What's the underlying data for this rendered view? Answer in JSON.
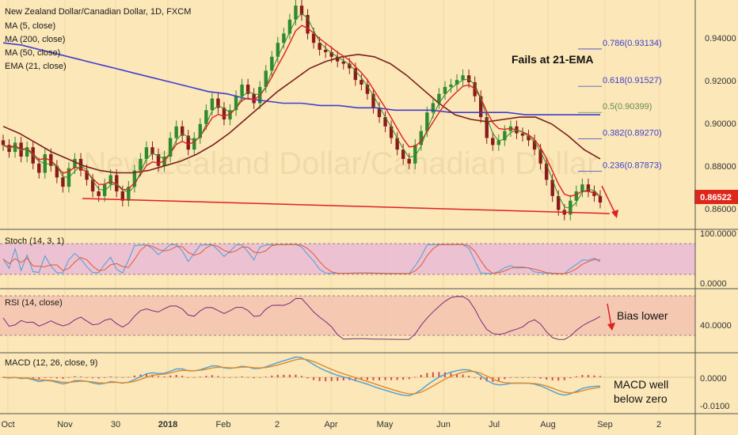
{
  "chart_data": {
    "type": "line",
    "title": "New Zealand Dollar/Canadian Dollar, 1D, FXCM",
    "watermark": "New Zealand Dollar/Canadian Dollar",
    "x_ticks": [
      "Oct",
      "Nov",
      "30",
      "2018",
      "Feb",
      "2",
      "Apr",
      "May",
      "Jun",
      "Jul",
      "Aug",
      "Sep",
      "2"
    ],
    "price_pane": {
      "legend": [
        "MA (5, close)",
        "MA (200, close)",
        "MA (50, close)",
        "EMA (21, close)"
      ],
      "y_ticks": [
        "0.94000",
        "0.92000",
        "0.90000",
        "0.88000",
        "0.86000"
      ],
      "ylim": [
        0.855,
        0.947
      ],
      "last_price": "0.86522",
      "close_series": [
        0.89,
        0.887,
        0.891,
        0.885,
        0.889,
        0.882,
        0.878,
        0.886,
        0.881,
        0.876,
        0.872,
        0.88,
        0.884,
        0.879,
        0.875,
        0.87,
        0.868,
        0.873,
        0.877,
        0.87,
        0.866,
        0.872,
        0.879,
        0.884,
        0.889,
        0.886,
        0.881,
        0.885,
        0.893,
        0.898,
        0.894,
        0.888,
        0.893,
        0.899,
        0.905,
        0.91,
        0.906,
        0.901,
        0.905,
        0.911,
        0.916,
        0.912,
        0.908,
        0.915,
        0.922,
        0.928,
        0.934,
        0.938,
        0.944,
        0.95,
        0.946,
        0.938,
        0.934,
        0.931,
        0.93,
        0.928,
        0.926,
        0.925,
        0.923,
        0.918,
        0.916,
        0.912,
        0.906,
        0.902,
        0.898,
        0.893,
        0.888,
        0.884,
        0.882,
        0.89,
        0.896,
        0.904,
        0.908,
        0.912,
        0.915,
        0.916,
        0.918,
        0.92,
        0.917,
        0.911,
        0.902,
        0.893,
        0.89,
        0.892,
        0.896,
        0.898,
        0.895,
        0.894,
        0.892,
        0.888,
        0.882,
        0.875,
        0.868,
        0.862,
        0.86,
        0.866,
        0.87,
        0.873,
        0.87,
        0.868,
        0.8652
      ],
      "sma200": [
        0.934,
        0.933,
        0.931,
        0.929,
        0.927,
        0.925,
        0.923,
        0.921,
        0.919,
        0.917,
        0.915,
        0.913,
        0.912,
        0.91,
        0.909,
        0.908,
        0.908,
        0.907,
        0.907,
        0.906,
        0.906,
        0.905,
        0.905,
        0.905,
        0.904,
        0.904,
        0.904,
        0.904,
        0.903,
        0.903,
        0.903,
        0.903,
        0.903
      ],
      "sma50": [
        0.898,
        0.895,
        0.891,
        0.887,
        0.884,
        0.881,
        0.879,
        0.878,
        0.878,
        0.879,
        0.881,
        0.883,
        0.886,
        0.89,
        0.895,
        0.901,
        0.907,
        0.913,
        0.918,
        0.923,
        0.926,
        0.928,
        0.929,
        0.928,
        0.925,
        0.92,
        0.914,
        0.908,
        0.903,
        0.901,
        0.9,
        0.901,
        0.902,
        0.902,
        0.899,
        0.894,
        0.888,
        0.884
      ],
      "fib_levels": [
        {
          "ratio": "0.786",
          "label": "0.786(0.93134)",
          "value": 0.93134,
          "color": "#3f3fd0"
        },
        {
          "ratio": "0.618",
          "label": "0.618(0.91527)",
          "value": 0.91527,
          "color": "#3f3fd0"
        },
        {
          "ratio": "0.5",
          "label": "0.5(0.90399)",
          "value": 0.90399,
          "color": "#6a8a58"
        },
        {
          "ratio": "0.382",
          "label": "0.382(0.89270)",
          "value": 0.8927,
          "color": "#3f3fd0"
        },
        {
          "ratio": "0.236",
          "label": "0.236(0.87873)",
          "value": 0.87873,
          "color": "#3f3fd0"
        }
      ],
      "annotation": "Fails at 21-EMA"
    },
    "stoch_pane": {
      "legend": "Stoch (14, 3, 1)",
      "y_ticks": [
        "100.0000",
        "0.0000"
      ],
      "bands": [
        80,
        20
      ]
    },
    "rsi_pane": {
      "legend": "RSI (14, close)",
      "y_ticks": [
        "40.0000"
      ],
      "annotation": "Bias lower"
    },
    "macd_pane": {
      "legend": "MACD (12, 26, close, 9)",
      "y_ticks": [
        "0.0000",
        "-0.0100"
      ],
      "annotation_lines": [
        "MACD well",
        "below zero"
      ]
    },
    "colors": {
      "background": "#fbe7b8",
      "candle_up": "#2e8b2e",
      "candle_down": "#8b1a1a",
      "ma5": "#2e8b2e",
      "ema21": "#e02020",
      "ma50": "#7a1f1f",
      "ma200": "#3e3ed0",
      "trendline": "#e02020",
      "price_badge": "#e0261a",
      "stoch_band": "#e8b8d8",
      "rsi_band": "#f4c0b0"
    }
  }
}
